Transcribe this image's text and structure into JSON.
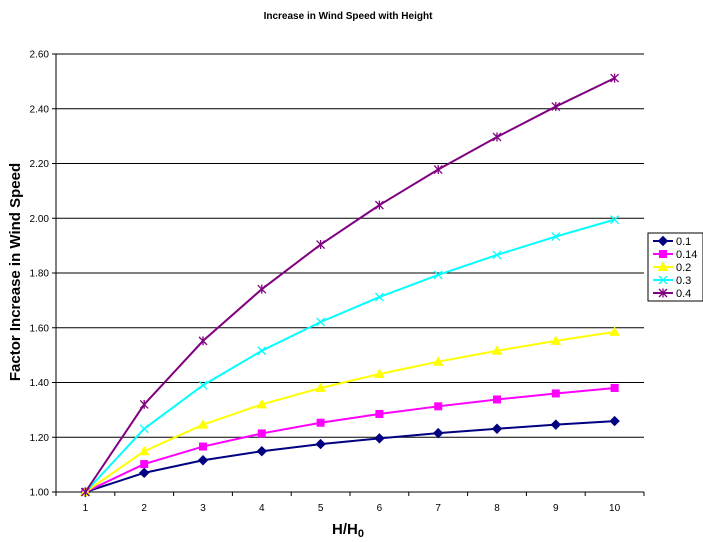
{
  "chart_data": {
    "type": "line",
    "title": "Increase in Wind Speed with Height",
    "xlabel": "H/H",
    "xlabel_subscript": "0",
    "ylabel": "Factor Increase in Wind Speed",
    "x": [
      1,
      2,
      3,
      4,
      5,
      6,
      7,
      8,
      9,
      10
    ],
    "ylim": [
      1.0,
      2.6
    ],
    "yticks": [
      "1.00",
      "1.20",
      "1.40",
      "1.60",
      "1.80",
      "2.00",
      "2.20",
      "2.40",
      "2.60"
    ],
    "grid": "horizontal major gridlines",
    "legend_position": "right",
    "series": [
      {
        "name": "0.1",
        "color": "#000080",
        "marker": "diamond",
        "values": [
          1.0,
          1.07,
          1.116,
          1.149,
          1.175,
          1.196,
          1.215,
          1.231,
          1.246,
          1.259
        ]
      },
      {
        "name": "0.14",
        "color": "#FF00FF",
        "marker": "square",
        "values": [
          1.0,
          1.102,
          1.166,
          1.214,
          1.253,
          1.285,
          1.313,
          1.338,
          1.36,
          1.38
        ]
      },
      {
        "name": "0.2",
        "color": "#FFFF00",
        "marker": "triangle",
        "values": [
          1.0,
          1.149,
          1.246,
          1.32,
          1.38,
          1.431,
          1.476,
          1.516,
          1.552,
          1.585
        ]
      },
      {
        "name": "0.3",
        "color": "#00FFFF",
        "marker": "x",
        "values": [
          1.0,
          1.231,
          1.39,
          1.516,
          1.621,
          1.712,
          1.793,
          1.866,
          1.933,
          1.995
        ]
      },
      {
        "name": "0.4",
        "color": "#800080",
        "marker": "star",
        "values": [
          1.0,
          1.32,
          1.552,
          1.741,
          1.904,
          2.048,
          2.178,
          2.297,
          2.408,
          2.512
        ]
      }
    ]
  }
}
